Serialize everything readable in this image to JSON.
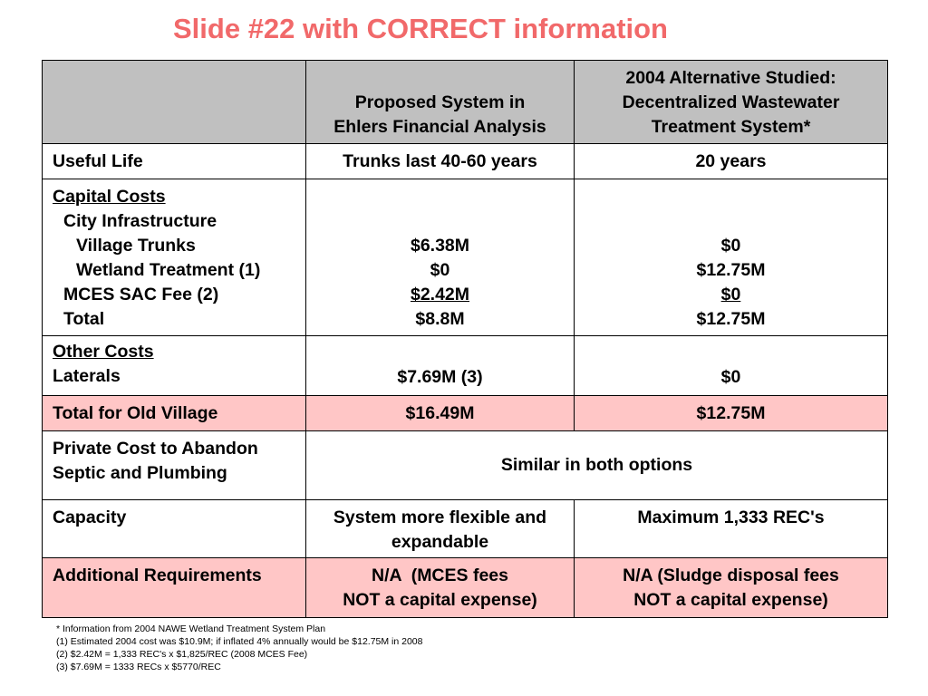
{
  "title": "Slide #22 with CORRECT information",
  "header": {
    "col1": "",
    "col2_l1": "Proposed System in",
    "col2_l2": "Ehlers Financial Analysis",
    "col3_l1": "2004 Alternative Studied:",
    "col3_l2": "Decentralized Wastewater",
    "col3_l3": "Treatment System*"
  },
  "useful_life": {
    "label": "Useful Life",
    "proposed": "Trunks last 40-60 years",
    "alternative": "20 years"
  },
  "capital": {
    "heading": "Capital Costs",
    "city": "City Infrastructure",
    "village": "Village Trunks",
    "wetland": "Wetland Treatment (1)",
    "sac": "MCES SAC Fee (2)",
    "total": "Total",
    "proposed": [
      "$6.38M",
      "$0",
      "$2.42M",
      "$8.8M"
    ],
    "alternative": [
      "$0",
      "$12.75M",
      "$0",
      "$12.75M"
    ]
  },
  "other": {
    "heading": "Other Costs",
    "laterals": "Laterals",
    "proposed": "$7.69M (3)",
    "alternative": "$0"
  },
  "total_old_village": {
    "label": "Total for Old Village",
    "proposed": "$16.49M",
    "alternative": "$12.75M"
  },
  "private": {
    "l1": "Private Cost to Abandon",
    "l2": "Septic and Plumbing",
    "both": "Similar in both options"
  },
  "capacity": {
    "label": "Capacity",
    "proposed_l1": "System more flexible and",
    "proposed_l2": "expandable",
    "alternative": "Maximum 1,333 REC's"
  },
  "additional": {
    "label": "Additional Requirements",
    "proposed_l1": "N/A  (MCES fees",
    "proposed_l2": "NOT a capital expense)",
    "alternative_l1": "N/A (Sludge disposal fees",
    "alternative_l2": "NOT a capital expense)"
  },
  "notes": [
    "* Information from 2004 NAWE Wetland Treatment System Plan",
    "(1) Estimated 2004 cost was $10.9M; if inflated 4% annually would be $12.75M in 2008",
    "(2) $2.42M = 1,333 REC's x $1,825/REC (2008 MCES Fee)",
    "(3) $7.69M = 1333 RECs x $5770/REC"
  ],
  "colors": {
    "title": "#f1696a",
    "header_bg": "#c0c0c0",
    "highlight_row_bg": "#ffc6c6"
  }
}
